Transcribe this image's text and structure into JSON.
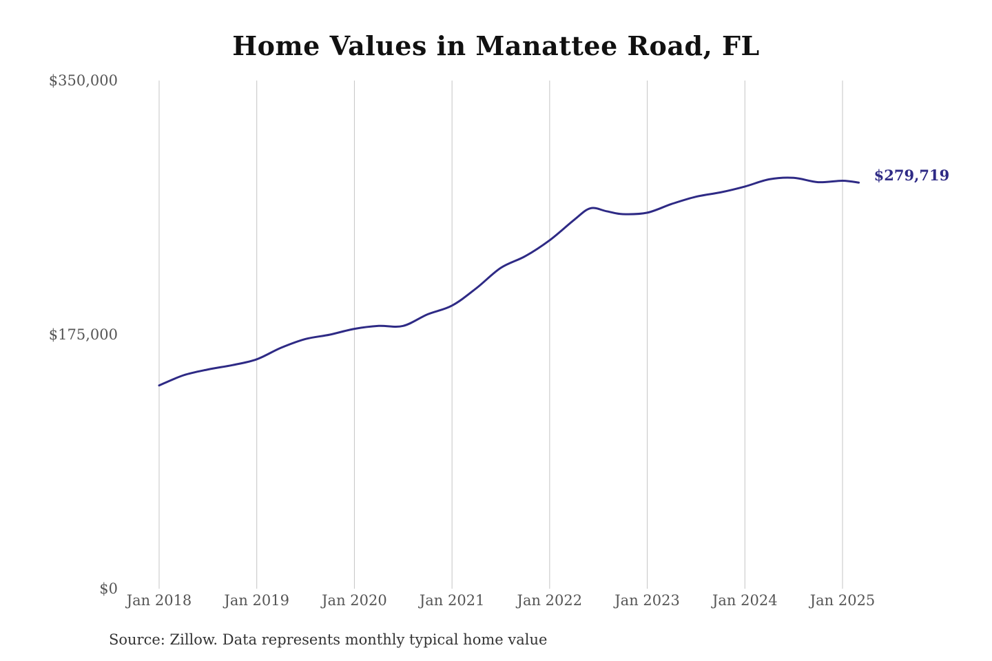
{
  "chart_data": {
    "type": "line",
    "title": "Home Values in Manattee Road, FL",
    "source": "Source: Zillow. Data represents monthly typical home value",
    "xlabel": "",
    "ylabel": "",
    "ylim": [
      0,
      350000
    ],
    "y_ticks": [
      0,
      175000,
      350000
    ],
    "y_tick_labels": [
      "$0",
      "$175,000",
      "$350,000"
    ],
    "x_ticks": [
      "2018-01",
      "2019-01",
      "2020-01",
      "2021-01",
      "2022-01",
      "2023-01",
      "2024-01",
      "2025-01"
    ],
    "x_tick_labels": [
      "Jan 2018",
      "Jan 2019",
      "Jan 2020",
      "Jan 2021",
      "Jan 2022",
      "Jan 2023",
      "Jan 2024",
      "Jan 2025"
    ],
    "grid": "vertical",
    "line_color": "#2e2a85",
    "end_label": "$279,719",
    "series": [
      {
        "name": "",
        "x": [
          "2018-01",
          "2018-04",
          "2018-07",
          "2018-10",
          "2019-01",
          "2019-04",
          "2019-07",
          "2019-10",
          "2020-01",
          "2020-04",
          "2020-07",
          "2020-10",
          "2021-01",
          "2021-04",
          "2021-07",
          "2021-10",
          "2022-01",
          "2022-04",
          "2022-06",
          "2022-08",
          "2022-10",
          "2023-01",
          "2023-04",
          "2023-07",
          "2023-10",
          "2024-01",
          "2024-04",
          "2024-07",
          "2024-10",
          "2025-01",
          "2025-03"
        ],
        "values": [
          140000,
          147000,
          151000,
          154000,
          158000,
          166000,
          172000,
          175000,
          179000,
          181000,
          181000,
          189000,
          195000,
          207000,
          221000,
          229000,
          240000,
          254000,
          262000,
          260000,
          258000,
          259000,
          265000,
          270000,
          273000,
          277000,
          282000,
          283000,
          280000,
          281000,
          279719
        ]
      }
    ]
  }
}
